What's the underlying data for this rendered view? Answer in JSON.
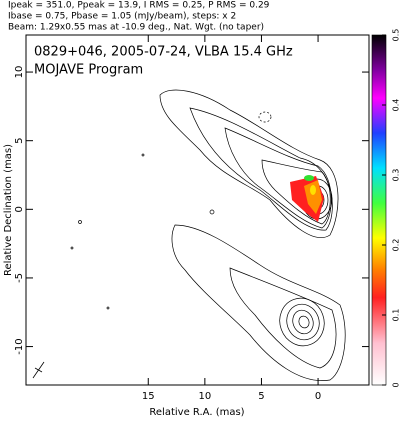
{
  "chart_data": {
    "type": "contour",
    "header": [
      "Ipeak = 351.0, Ppeak = 13.9, I RMS = 0.25, P RMS = 0.29",
      "Ibase = 0.75, Pbase = 1.05 (mJy/beam), steps: x 2",
      "Beam: 1.29x0.55 mas at -10.9 deg., Nat. Wgt. (no taper)"
    ],
    "title": "0829+046, 2005-07-24, VLBA 15.4 GHz",
    "subtitle": "MOJAVE Program",
    "x_label": "Relative R.A. (mas)",
    "y_label": "Relative Declination (mas)",
    "xlim": [
      25.8,
      -4.5
    ],
    "xticks": [
      15,
      10,
      5,
      0
    ],
    "ylim": [
      -12.8,
      12.7
    ],
    "yticks": [
      -10,
      -5,
      0,
      5,
      10
    ],
    "colorbar": {
      "lim": [
        0,
        0.5
      ],
      "ticks": [
        0,
        0.1,
        0.2,
        0.3,
        0.4,
        0.5
      ]
    }
  }
}
